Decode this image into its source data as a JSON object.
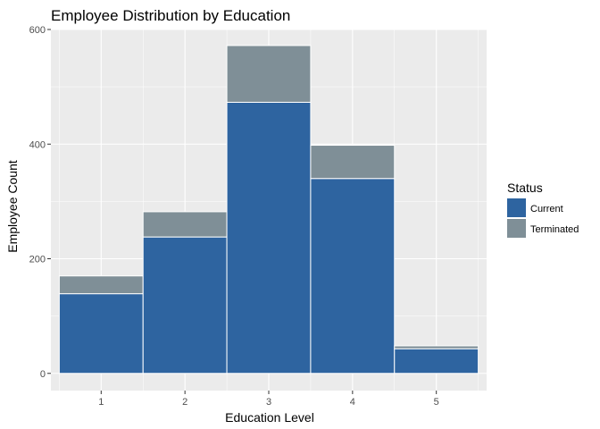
{
  "chart_data": {
    "type": "bar",
    "stacked": true,
    "title": "Employee Distribution by Education",
    "xlabel": "Education Level",
    "ylabel": "Employee Count",
    "categories": [
      "1",
      "2",
      "3",
      "4",
      "5"
    ],
    "series": [
      {
        "name": "Current",
        "values": [
          139,
          238,
          473,
          340,
          43
        ],
        "color": "#2e64a0"
      },
      {
        "name": "Terminated",
        "values": [
          31,
          44,
          99,
          58,
          5
        ],
        "color": "#7f8f97"
      }
    ],
    "yticks": [
      0,
      200,
      400,
      600
    ],
    "ylim": [
      -30,
      600
    ],
    "grid": true,
    "legend": {
      "title": "Status",
      "position": "right"
    },
    "colors": {
      "panel": "#ebebeb",
      "grid": "#ffffff"
    }
  }
}
